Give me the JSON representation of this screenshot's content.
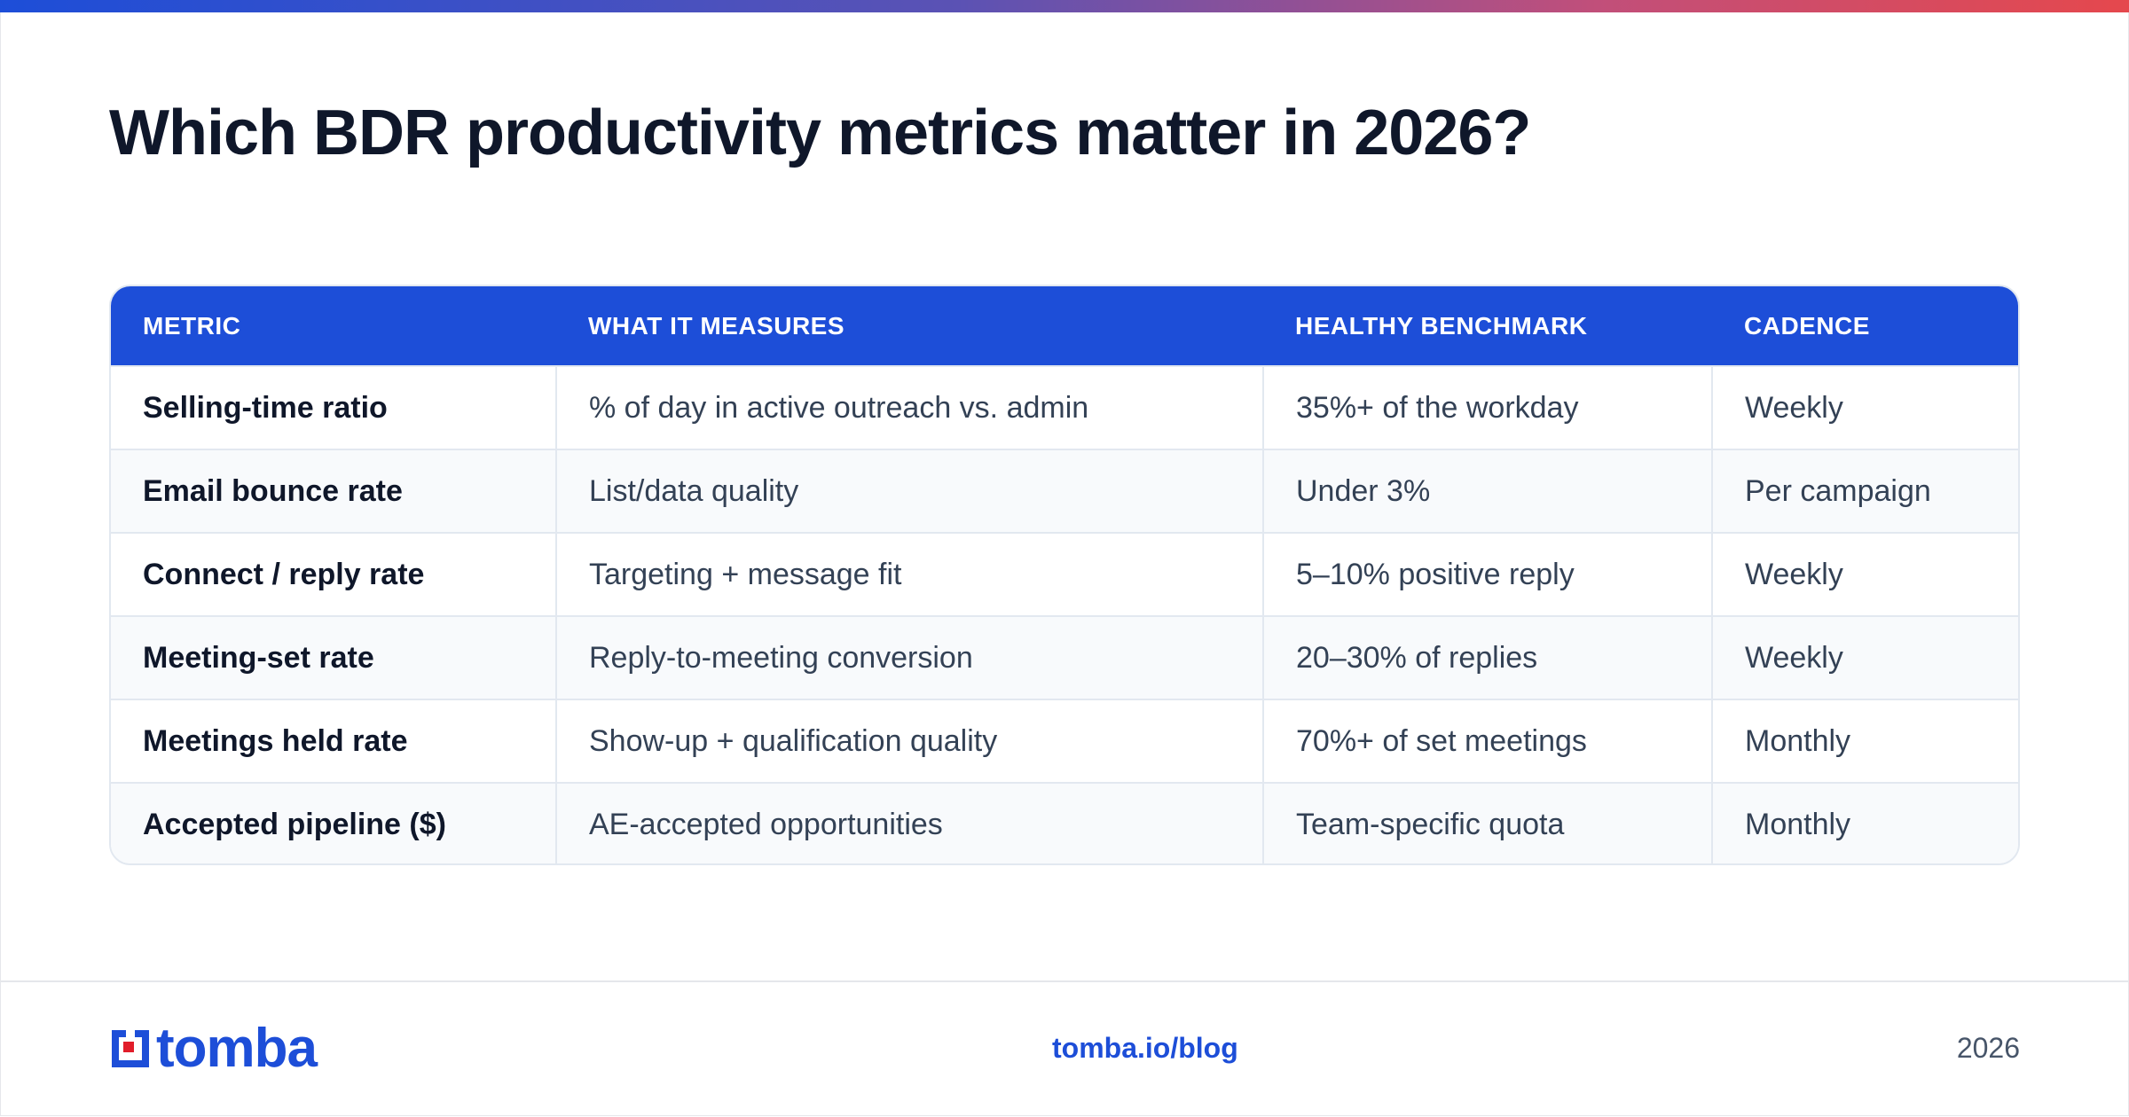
{
  "title": "Which BDR productivity metrics matter in 2026?",
  "table": {
    "headers": [
      "METRIC",
      "WHAT IT MEASURES",
      "HEALTHY BENCHMARK",
      "CADENCE"
    ],
    "rows": [
      [
        "Selling-time ratio",
        "% of day in active outreach vs. admin",
        "35%+ of the workday",
        "Weekly"
      ],
      [
        "Email bounce rate",
        "List/data quality",
        "Under 3%",
        "Per campaign"
      ],
      [
        "Connect / reply rate",
        "Targeting + message fit",
        "5–10% positive reply",
        "Weekly"
      ],
      [
        "Meeting-set rate",
        "Reply-to-meeting conversion",
        "20–30% of replies",
        "Weekly"
      ],
      [
        "Meetings held rate",
        "Show-up + qualification quality",
        "70%+ of set meetings",
        "Monthly"
      ],
      [
        "Accepted pipeline ($)",
        "AE-accepted opportunities",
        "Team-specific quota",
        "Monthly"
      ]
    ]
  },
  "footer": {
    "logo_text": "tomba",
    "link": "tomba.io/blog",
    "year": "2026"
  },
  "colors": {
    "accent": "#1d4ed8",
    "logo_red": "#e11d2a",
    "header_text": "#ffffff",
    "row_alt": "#f8fafc"
  },
  "icons": {
    "logo": "tomba-logo-mark-icon"
  }
}
